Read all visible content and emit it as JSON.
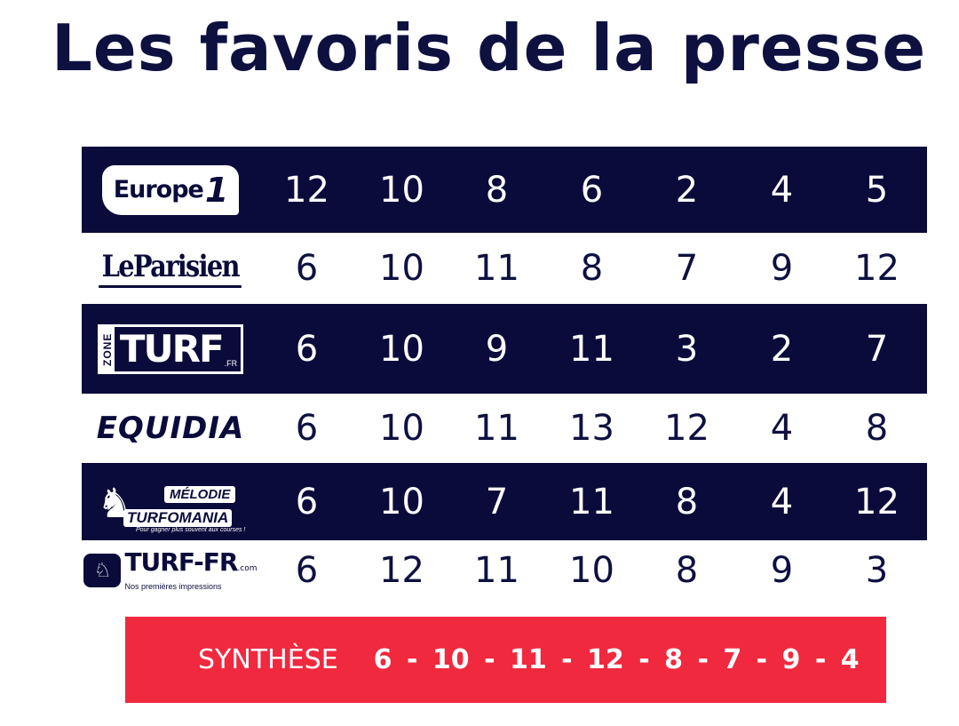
{
  "title": "Les favoris de la presse",
  "colors": {
    "navy": "#0b0b3b",
    "red": "#f0293f",
    "white": "#ffffff"
  },
  "rows": [
    {
      "source": "Europe 1",
      "logo_text": "Europe",
      "logo_suffix": "1",
      "picks": [
        "12",
        "10",
        "8",
        "6",
        "2",
        "4",
        "5"
      ]
    },
    {
      "source": "Le Parisien",
      "logo_text": "LeParisien",
      "picks": [
        "6",
        "10",
        "11",
        "8",
        "7",
        "9",
        "12"
      ]
    },
    {
      "source": "Zone Turf",
      "logo_small": "ZONE",
      "logo_text": "TURF",
      "logo_suffix": ".FR",
      "picks": [
        "6",
        "10",
        "9",
        "11",
        "3",
        "2",
        "7"
      ]
    },
    {
      "source": "Equidia",
      "logo_text": "EQUIDIA",
      "picks": [
        "6",
        "10",
        "11",
        "13",
        "12",
        "4",
        "8"
      ]
    },
    {
      "source": "Mélodie Turfomania",
      "logo_text": "MÉLODIE",
      "logo_text2": "TURFOMANIA",
      "logo_tagline": "Pour gagner plus souvent aux courses !",
      "picks": [
        "6",
        "10",
        "7",
        "11",
        "8",
        "4",
        "12"
      ]
    },
    {
      "source": "Turf-FR",
      "logo_text": "TURF-FR",
      "logo_suffix": ".com",
      "logo_tagline": "Nos premières impressions",
      "picks": [
        "6",
        "12",
        "11",
        "10",
        "8",
        "9",
        "3"
      ]
    }
  ],
  "synthese": {
    "label": "SYNTHÈSE",
    "values": "6 - 10 - 11 - 12 - 8 - 7 - 9 - 4"
  }
}
